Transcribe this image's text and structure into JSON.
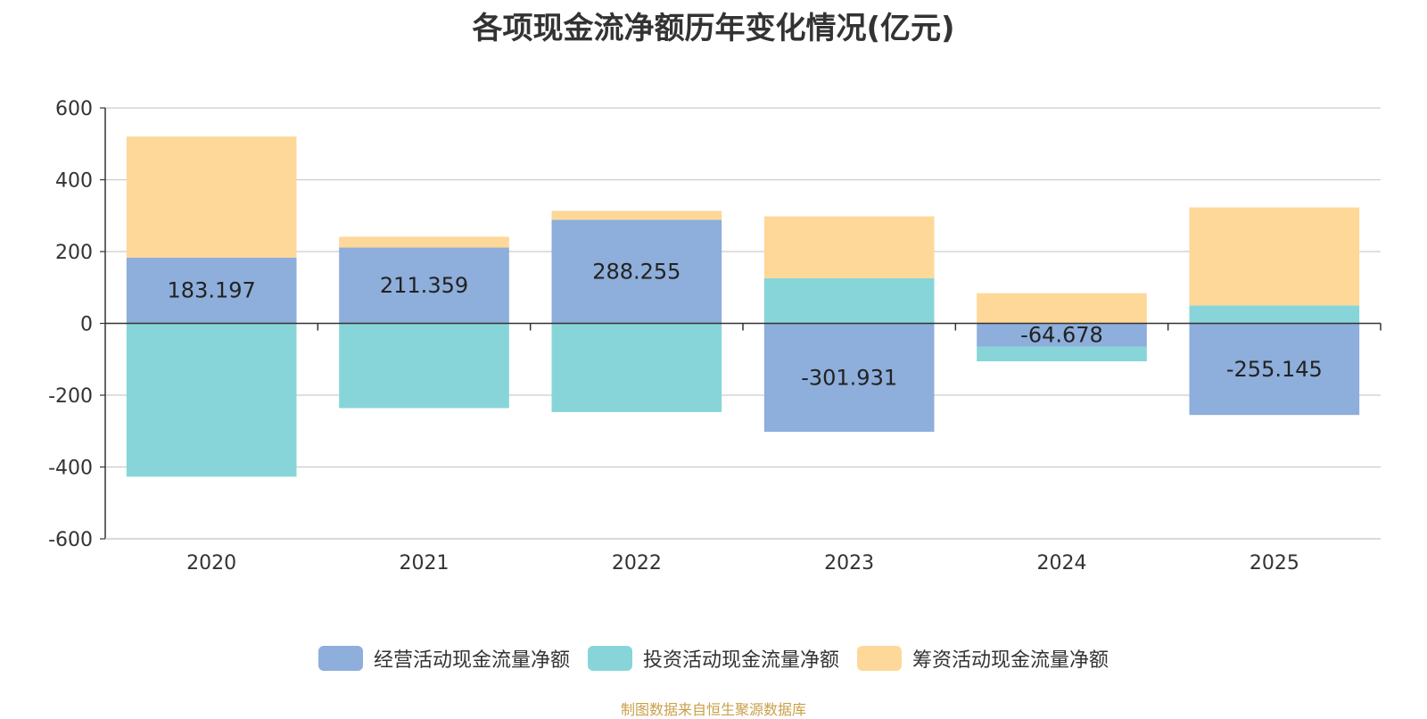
{
  "chart_data": {
    "type": "bar",
    "stacked": true,
    "title": "各项现金流净额历年变化情况(亿元)",
    "categories": [
      "2020",
      "2021",
      "2022",
      "2023",
      "2024",
      "2025"
    ],
    "series": [
      {
        "name": "经营活动现金流量净额",
        "color": "#8eaedb",
        "values": [
          183.197,
          211.359,
          288.255,
          -301.931,
          -64.678,
          -255.145
        ],
        "labels": [
          "183.197",
          "211.359",
          "288.255",
          "-301.931",
          "-64.678",
          "-255.145"
        ]
      },
      {
        "name": "投资活动现金流量净额",
        "color": "#87d5d8",
        "values": [
          -427,
          -236,
          -247,
          126,
          -41,
          50
        ]
      },
      {
        "name": "筹资活动现金流量净额",
        "color": "#fed898",
        "values": [
          337,
          30,
          25,
          172,
          84,
          273
        ]
      }
    ],
    "ylim": [
      -600,
      600
    ],
    "yticks": [
      600,
      400,
      200,
      0,
      -200,
      -400,
      -600
    ],
    "grid": true,
    "legend_position": "bottom"
  },
  "footer": {
    "source": "制图数据来自恒生聚源数据库"
  }
}
